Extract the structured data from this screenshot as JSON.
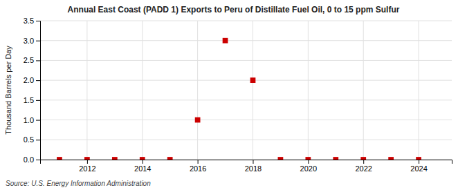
{
  "chart_data": {
    "type": "scatter",
    "title": "Annual East Coast (PADD 1) Exports to Peru of Distillate Fuel Oil, 0 to 15 ppm Sulfur",
    "ylabel": "Thousand Barrels per Day",
    "annotation": "Source: U.S. Energy Information Administration",
    "x": [
      2011,
      2012,
      2013,
      2014,
      2015,
      2016,
      2017,
      2018,
      2019,
      2020,
      2021,
      2022,
      2023,
      2024
    ],
    "values": [
      0.0,
      0.0,
      0.0,
      0.0,
      0.0,
      1.0,
      3.0,
      2.0,
      0.0,
      0.0,
      0.0,
      0.0,
      0.0,
      0.0
    ],
    "color": "#cc0000",
    "marker": "square",
    "xlim": [
      2010.3,
      2025.2
    ],
    "xticks": [
      2012,
      2014,
      2016,
      2018,
      2020,
      2022,
      2024
    ],
    "ylim": [
      0,
      3.5
    ],
    "yticks": [
      {
        "value": 0,
        "label": "0.0"
      },
      0.5,
      {
        "value": 1,
        "label": "1.0"
      },
      1.5,
      {
        "value": 2,
        "label": "2.0"
      },
      2.5,
      {
        "value": 3,
        "label": "3.0"
      },
      3.5
    ],
    "grid": true
  }
}
